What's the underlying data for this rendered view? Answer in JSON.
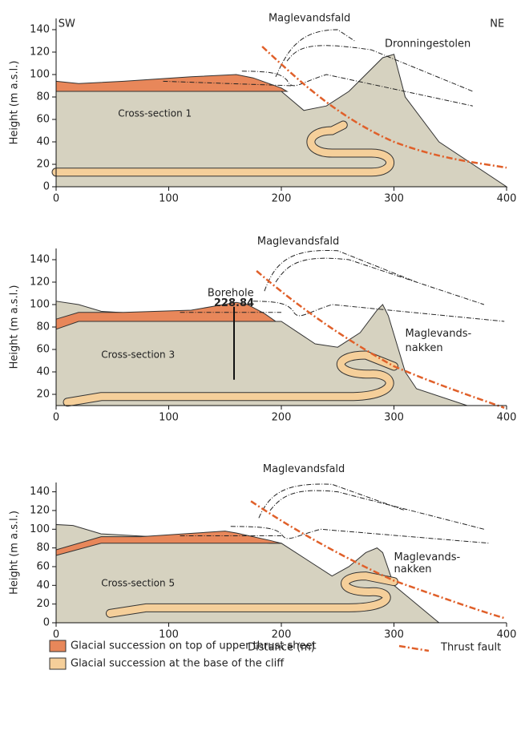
{
  "panels": [
    {
      "ylabel": "Height (m a.s.l.)",
      "xlim": [
        0,
        400
      ],
      "ylim": [
        0,
        150
      ],
      "xticks": [
        0,
        100,
        200,
        300,
        400
      ],
      "yticks": [
        0,
        20,
        40,
        60,
        80,
        100,
        120,
        140
      ],
      "annotations": [
        "SW",
        "NE",
        "Maglevandsfald",
        "Dronningestolen",
        "Cross-section 1"
      ]
    },
    {
      "ylabel": "Height (m a.s.l.)",
      "xlim": [
        0,
        400
      ],
      "ylim": [
        10,
        150
      ],
      "xticks": [
        0,
        100,
        200,
        300,
        400
      ],
      "yticks": [
        20,
        40,
        60,
        80,
        100,
        120,
        140
      ],
      "annotations": [
        "Maglevandsfald",
        "Borehole",
        "228.84",
        "Maglevands-",
        "nakken",
        "Cross-section 3"
      ]
    },
    {
      "ylabel": "Height (m a.s.l.)",
      "xlabel": "Distance (m)",
      "xlim": [
        0,
        400
      ],
      "ylim": [
        0,
        150
      ],
      "xticks": [
        0,
        100,
        200,
        300,
        400
      ],
      "yticks": [
        0,
        20,
        40,
        60,
        80,
        100,
        120,
        140
      ],
      "annotations": [
        "Maglevandsfald",
        "Maglevands-",
        "nakken",
        "Cross-section 5"
      ]
    }
  ],
  "legend": {
    "items": [
      "Glacial succession on top of upper thrust sheet",
      "Glacial succession at the base of the cliff",
      "Thrust fault"
    ]
  }
}
